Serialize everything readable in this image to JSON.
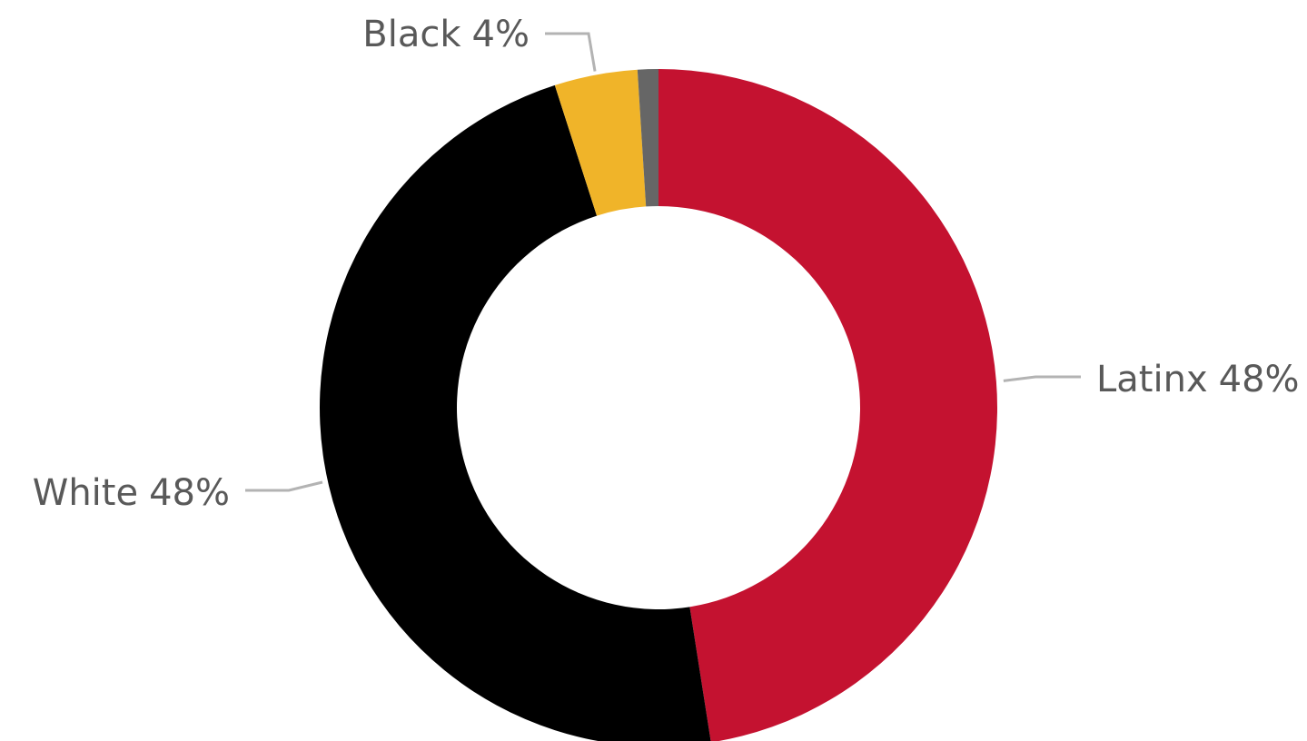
{
  "chart_data": {
    "type": "donut",
    "categories": [
      "Latinx",
      "White",
      "Black",
      null
    ],
    "values": [
      48,
      48,
      4,
      1
    ],
    "value_labels": [
      "48%",
      "48%",
      "4%",
      null
    ],
    "colors": [
      "#c41230",
      "#000000",
      "#f0b429",
      "#666666"
    ]
  }
}
